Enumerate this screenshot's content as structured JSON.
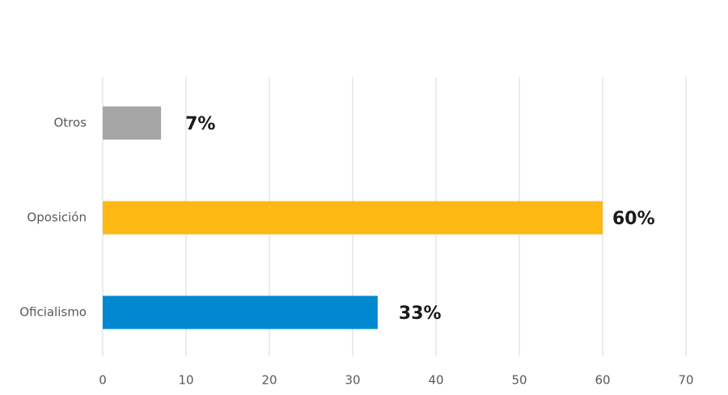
{
  "chart_data": {
    "type": "barh",
    "categories": [
      "Otros",
      "Oposición",
      "Oficialismo"
    ],
    "values": [
      7,
      60,
      33
    ],
    "value_labels": [
      "7%",
      "60%",
      "33%"
    ],
    "colors": [
      "#a5a5a5",
      "#fdb813",
      "#0088d1"
    ],
    "xlim": [
      0,
      70
    ],
    "xticks": [
      0,
      10,
      20,
      30,
      40,
      50,
      60,
      70
    ],
    "grid": true
  }
}
